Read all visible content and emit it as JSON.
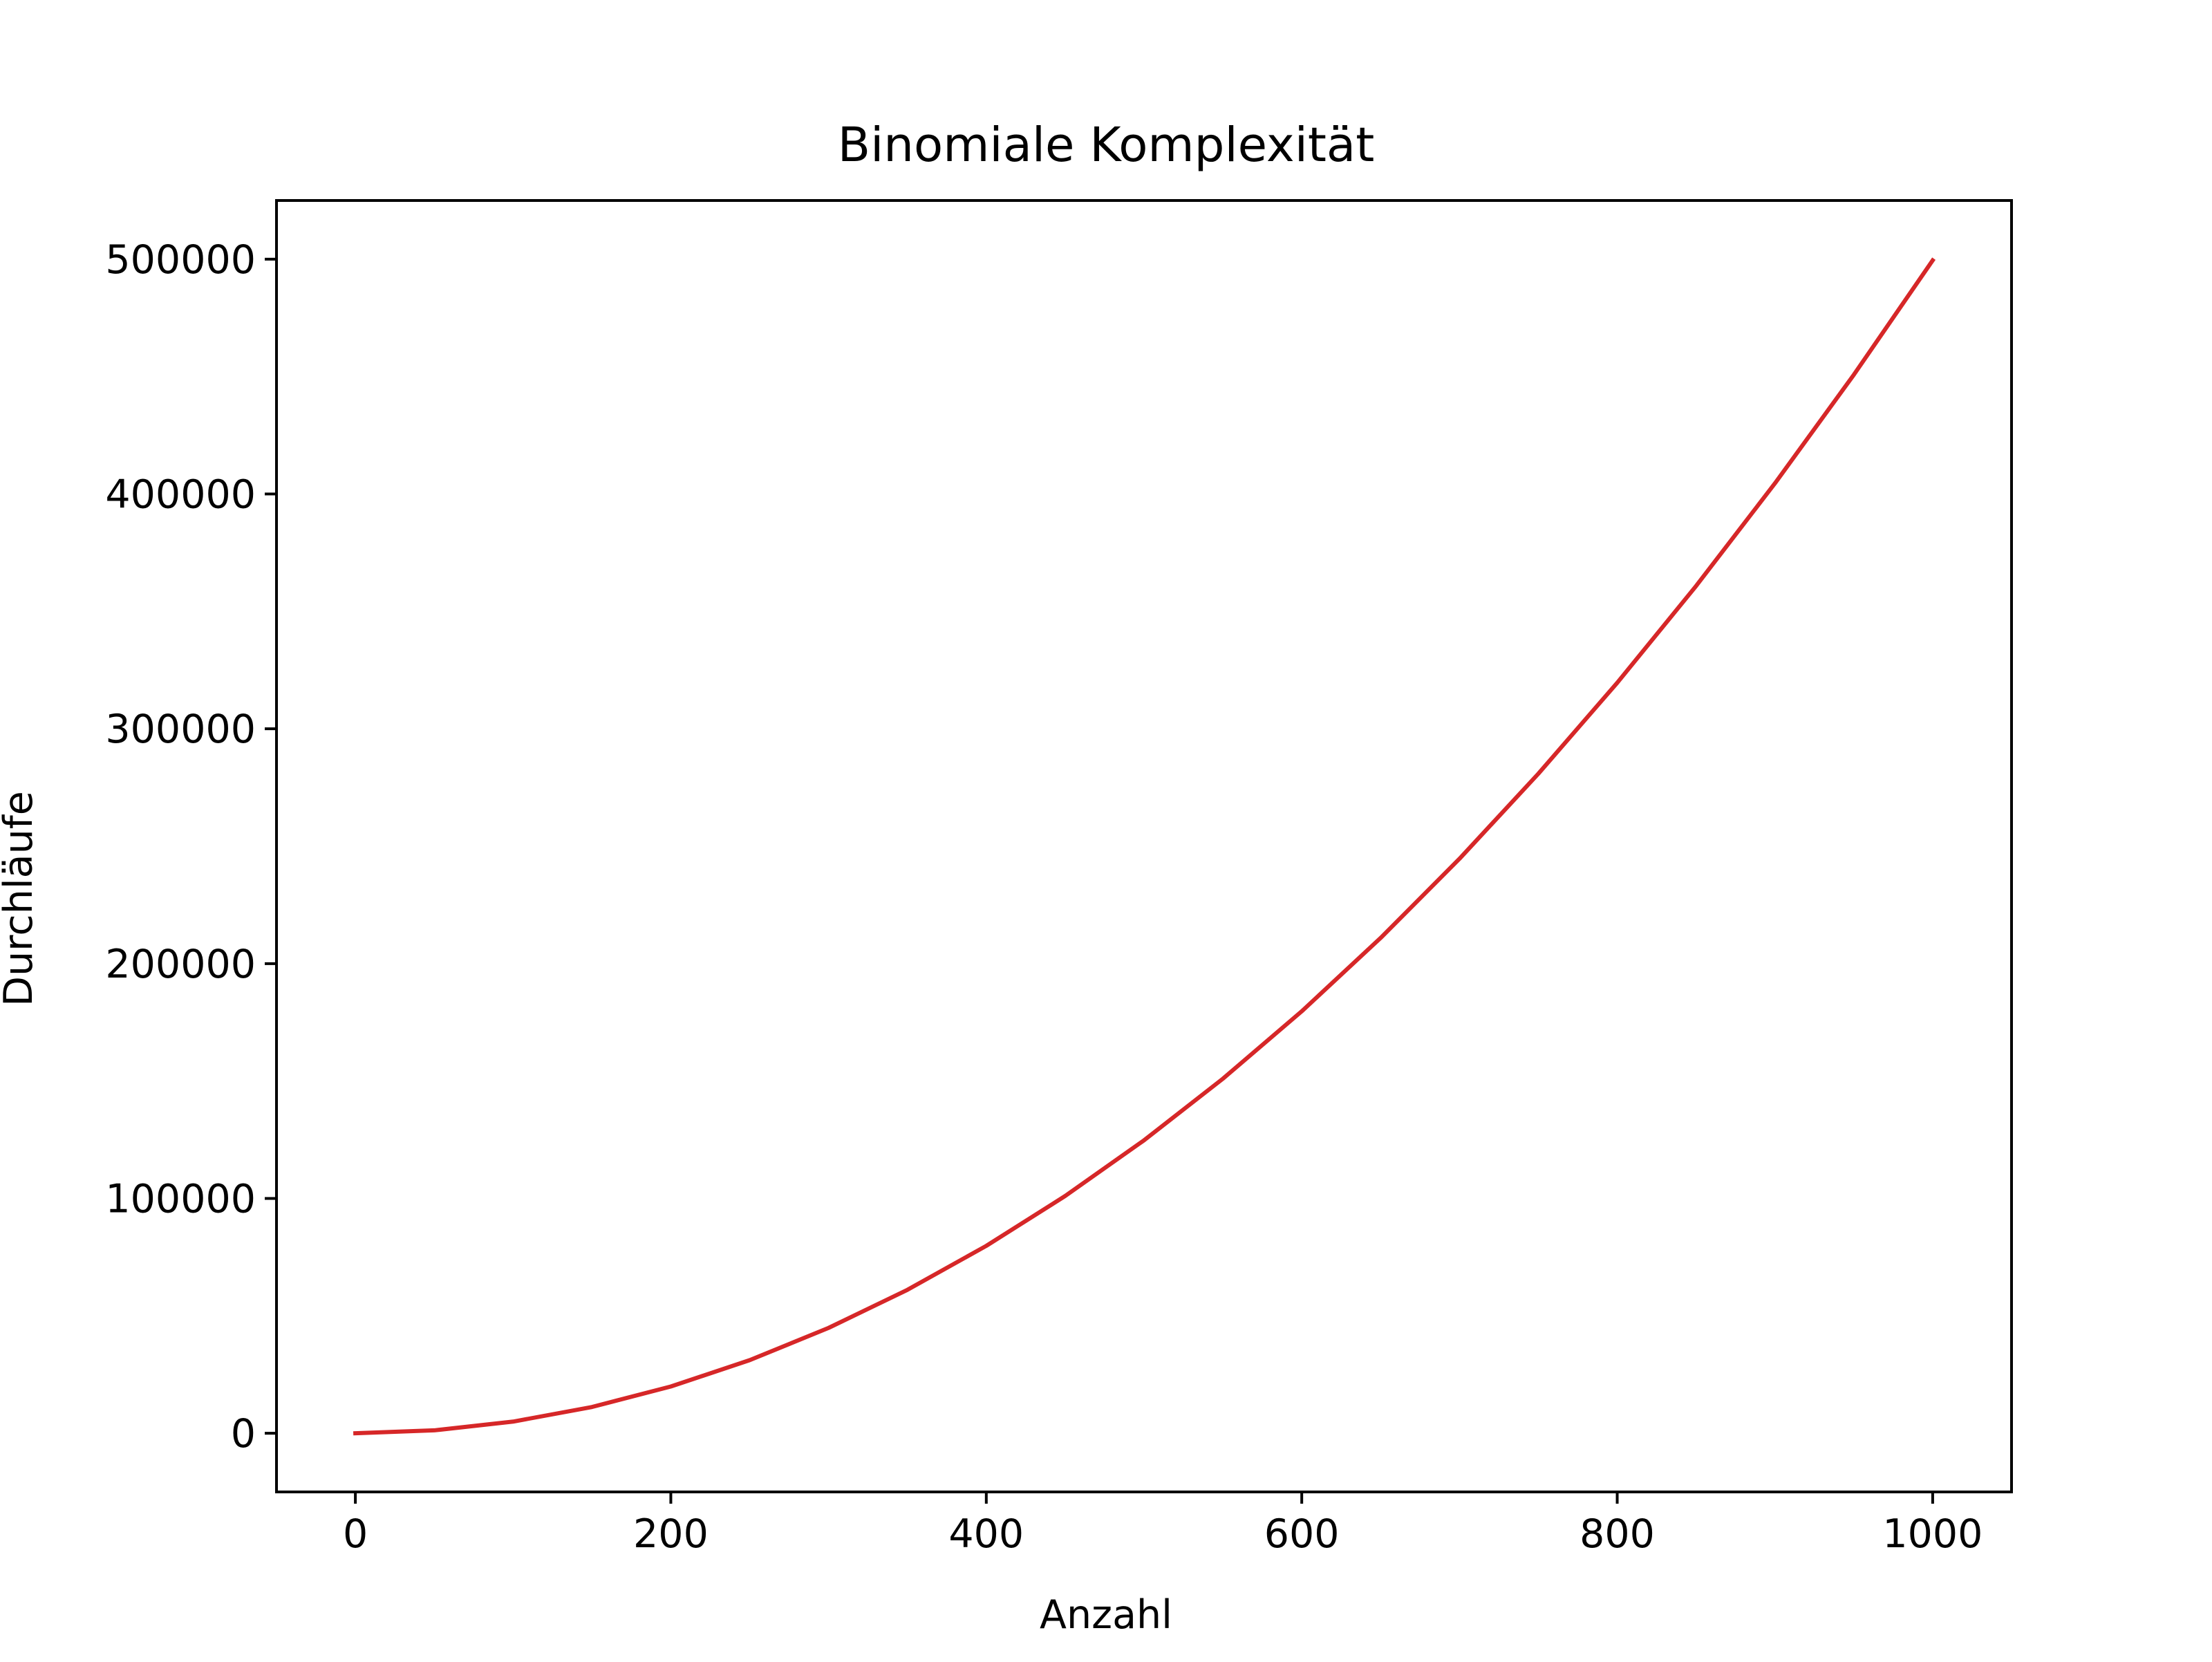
{
  "chart_data": {
    "type": "line",
    "title": "Binomiale Komplexität",
    "xlabel": "Anzahl",
    "ylabel": "Durchläufe",
    "xlim": [
      -50,
      1050
    ],
    "ylim": [
      -25000,
      525000
    ],
    "xticks": [
      0,
      200,
      400,
      600,
      800,
      1000
    ],
    "xtick_labels": [
      "0",
      "200",
      "400",
      "600",
      "800",
      "1000"
    ],
    "yticks": [
      0,
      100000,
      200000,
      300000,
      400000,
      500000
    ],
    "ytick_labels": [
      "0",
      "100000",
      "200000",
      "300000",
      "400000",
      "500000"
    ],
    "grid": false,
    "series": [
      {
        "color": "#d62728",
        "x": [
          0,
          50,
          100,
          150,
          200,
          250,
          300,
          350,
          400,
          450,
          500,
          550,
          600,
          650,
          700,
          750,
          800,
          850,
          900,
          950,
          1000
        ],
        "y": [
          0,
          1225,
          4950,
          11175,
          19900,
          31125,
          44850,
          61075,
          79800,
          101025,
          124750,
          150975,
          179700,
          210925,
          244650,
          280875,
          319600,
          360825,
          404550,
          450775,
          499500
        ]
      }
    ]
  }
}
